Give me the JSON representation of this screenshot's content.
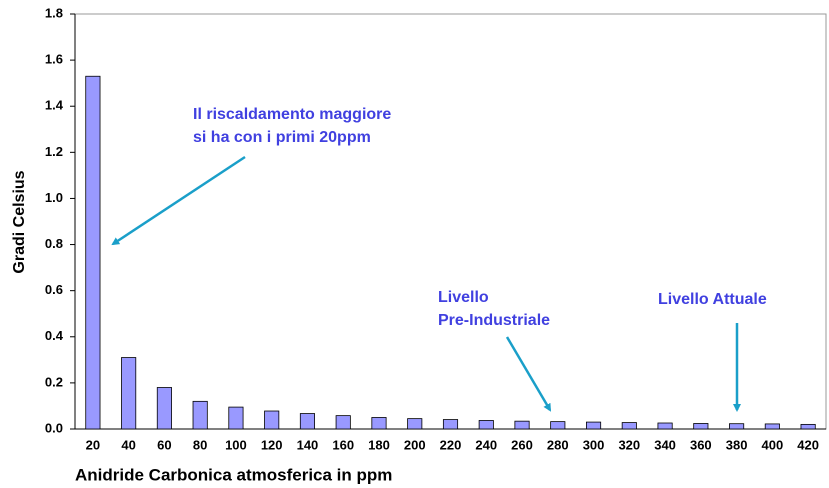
{
  "chart_data": {
    "type": "bar",
    "x_label": "Anidride Carbonica atmosferica in ppm",
    "y_label": "Gradi Celsius",
    "categories": [
      "20",
      "40",
      "60",
      "80",
      "100",
      "120",
      "140",
      "160",
      "180",
      "200",
      "220",
      "240",
      "260",
      "280",
      "300",
      "320",
      "340",
      "360",
      "380",
      "400",
      "420"
    ],
    "values": [
      1.53,
      0.31,
      0.18,
      0.12,
      0.095,
      0.078,
      0.067,
      0.058,
      0.05,
      0.045,
      0.041,
      0.037,
      0.034,
      0.032,
      0.03,
      0.028,
      0.026,
      0.024,
      0.023,
      0.022,
      0.02
    ],
    "color": "#9999ff",
    "ylim": [
      0,
      1.8
    ],
    "yticks": [
      {
        "value": 0,
        "label": "0.0"
      },
      0.2,
      0.4,
      0.6,
      0.8,
      {
        "value": 1,
        "label": "1.0"
      },
      1.2,
      1.4,
      1.6,
      1.8
    ],
    "grid": false,
    "annotations": [
      {
        "text": [
          "Il riscaldamento maggiore",
          "si ha con i primi 20ppm"
        ]
      },
      {
        "text": [
          "Livello",
          "Pre-Industriale"
        ]
      },
      {
        "text": [
          "Livello Attuale"
        ]
      }
    ]
  }
}
